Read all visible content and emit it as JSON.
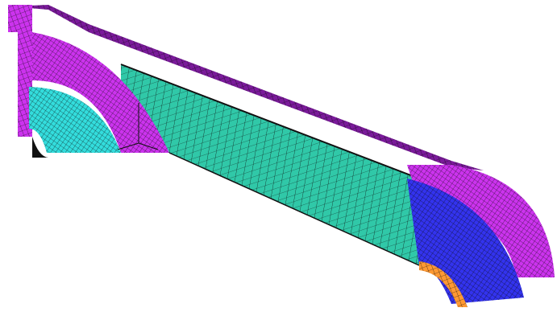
{
  "scene": {
    "description_visible_text": "",
    "colors": {
      "background": "#ffffff",
      "magenta": "#cc33ee",
      "magenta_dark": "#7a1a9a",
      "cyan": "#33dddd",
      "teal": "#30c8a8",
      "blue": "#3333ee",
      "mesh_line": "#111111",
      "orange": "#ff9933"
    },
    "parts": [
      {
        "name": "left-end-flange",
        "color": "magenta"
      },
      {
        "name": "left-end-hub",
        "color": "cyan"
      },
      {
        "name": "main-body-web",
        "color": "teal"
      },
      {
        "name": "top-rail",
        "color": "magenta_dark"
      },
      {
        "name": "right-end-flange",
        "color": "magenta"
      },
      {
        "name": "right-end-hub",
        "color": "blue"
      },
      {
        "name": "right-inner-ring",
        "color": "orange"
      }
    ],
    "mesh_densities": {
      "web": 9,
      "flange": 7,
      "hub": 6
    }
  }
}
